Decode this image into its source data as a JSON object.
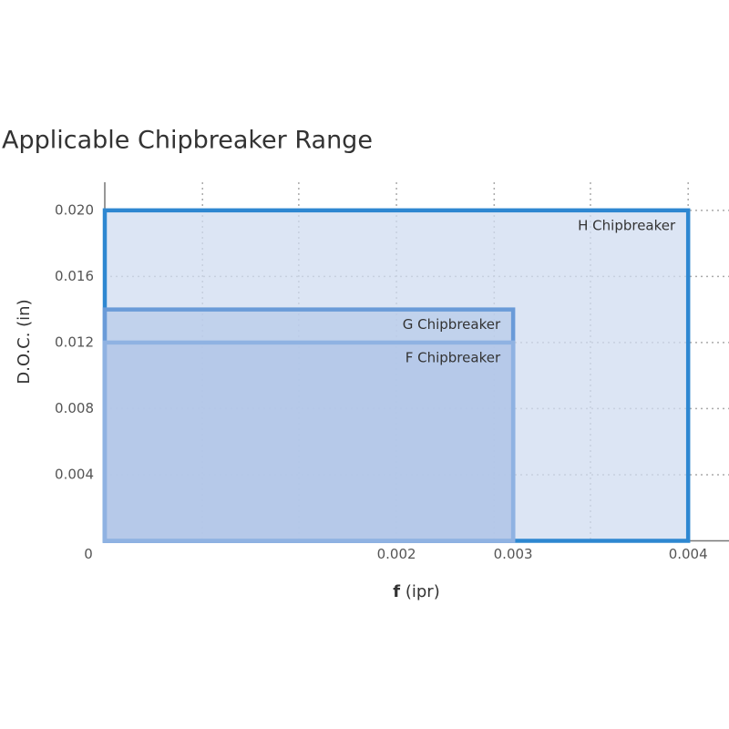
{
  "chart_data": {
    "type": "range",
    "title": "Applicable Chipbreaker Range",
    "y_label": "D.O.C. (in)",
    "x_label": {
      "symbol": "f",
      "unit": "(ipr)"
    },
    "xlim": [
      0,
      0.00428
    ],
    "ylim": [
      0,
      0.0217
    ],
    "xticks": [
      0,
      0.002,
      {
        "value": 0.0028,
        "label": "0.003"
      },
      0.004
    ],
    "yticks": [
      {
        "value": 0.004,
        "label": "0.004"
      },
      {
        "value": 0.008,
        "label": "0.008"
      },
      {
        "value": 0.012,
        "label": "0.012"
      },
      {
        "value": 0.016,
        "label": "0.016"
      },
      {
        "value": 0.02,
        "label": "0.020"
      }
    ],
    "xgrid": [
      0.00067,
      0.00133,
      0.002,
      0.00267,
      0.00333,
      0.004
    ],
    "grid": true,
    "series": [
      {
        "name": "H Chipbreaker",
        "color": "#2e87d1",
        "fill": "#d0dcf0",
        "x": [
          0,
          0.004
        ],
        "y": [
          0,
          0.02
        ]
      },
      {
        "name": "G Chipbreaker",
        "color": "#6a9bd8",
        "fill": "#b8cbea",
        "x": [
          0,
          0.0028
        ],
        "y": [
          0,
          0.014
        ]
      },
      {
        "name": "F Chipbreaker",
        "color": "#8fb2e2",
        "fill": "#b2c6e8",
        "x": [
          0,
          0.0028
        ],
        "y": [
          0,
          0.012
        ]
      }
    ]
  }
}
